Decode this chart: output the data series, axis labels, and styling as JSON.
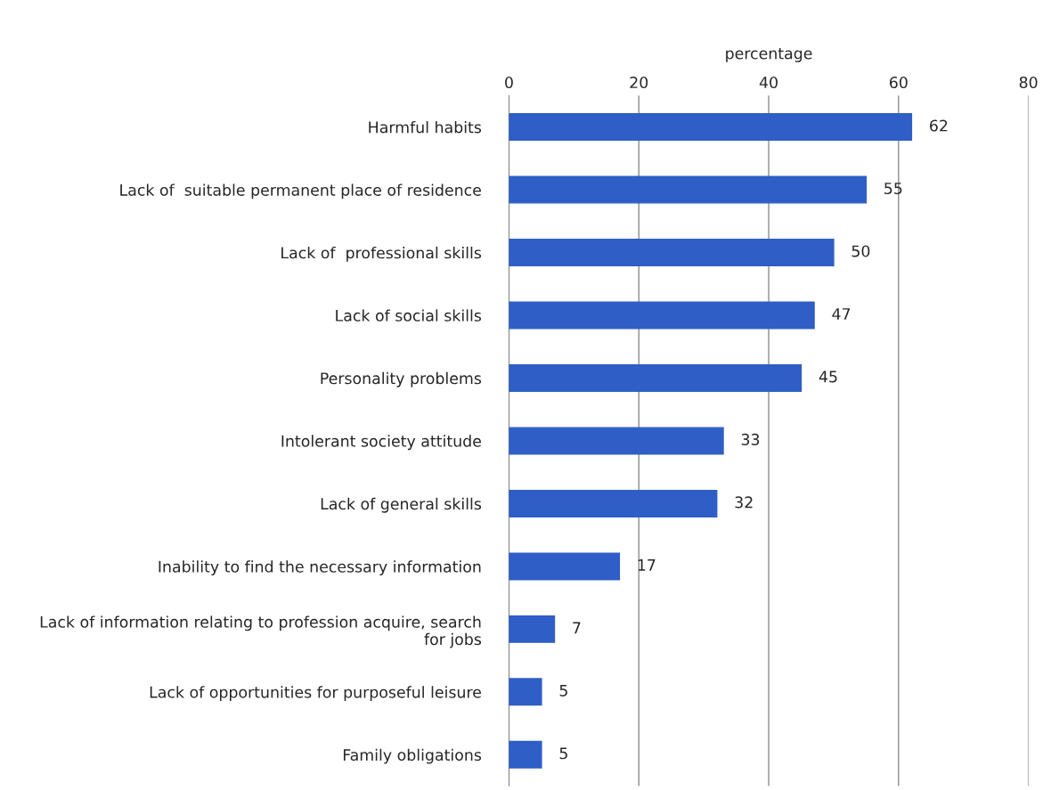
{
  "chart_data": {
    "type": "bar",
    "orientation": "horizontal",
    "xlabel": "percentage",
    "categories": [
      "Harmful habits",
      "Lack of  suitable permanent place of residence",
      "Lack of  professional skills",
      "Lack of social skills",
      "Personality problems",
      "Intolerant society attitude",
      "Lack of general skills",
      "Inability to find the necessary information",
      "Lack of information relating to profession acquire, search\nfor jobs",
      "Lack of opportunities for purposeful leisure",
      "Family obligations"
    ],
    "values": [
      62,
      55,
      50,
      47,
      45,
      33,
      32,
      17,
      7,
      5,
      5
    ],
    "color": "#2e5ec6",
    "xlim": [
      0,
      80
    ],
    "xticks": [
      0,
      20,
      40,
      60,
      80
    ],
    "grid": "x",
    "data_labels": true
  }
}
